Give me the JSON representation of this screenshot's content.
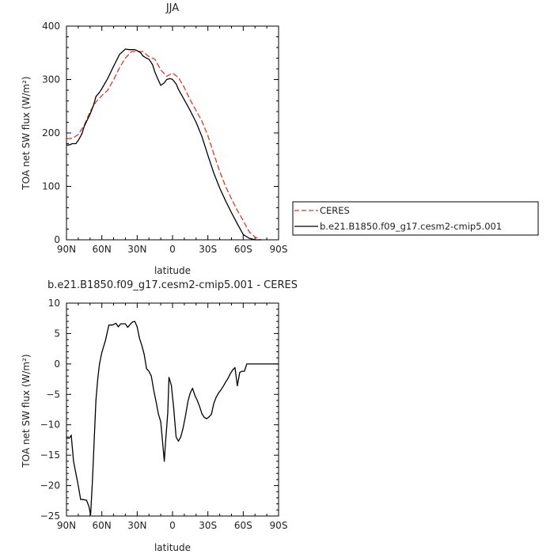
{
  "chart_data": [
    {
      "type": "line",
      "title": "JJA",
      "xlabel": "latitude",
      "ylabel": "TOA net SW flux (W/m²)",
      "ylim": [
        0,
        400
      ],
      "yticks": [
        "0",
        "100",
        "200",
        "300",
        "400"
      ],
      "xlim": [
        90,
        -90
      ],
      "xtick_values": [
        90,
        60,
        30,
        0,
        -30,
        -60,
        -90
      ],
      "xticks": [
        "90N",
        "60N",
        "30N",
        "0",
        "30S",
        "60S",
        "90S"
      ],
      "legend_position": "right",
      "series": [
        {
          "name": "CERES",
          "color": "#e8332b",
          "dash": "dashed",
          "x": [
            90,
            85,
            80,
            75,
            70,
            65,
            60,
            55,
            50,
            45,
            40,
            35,
            30,
            25,
            20,
            15,
            10,
            5,
            0,
            -5,
            -10,
            -15,
            -20,
            -25,
            -30,
            -35,
            -40,
            -45,
            -50,
            -55,
            -60,
            -65,
            -70,
            -75
          ],
          "y": [
            189,
            190,
            197,
            214,
            240,
            258,
            270,
            280,
            300,
            322,
            340,
            352,
            353,
            352,
            343,
            338,
            318,
            306,
            312,
            304,
            285,
            262,
            242,
            222,
            195,
            161,
            128,
            100,
            77,
            55,
            36,
            15,
            5,
            0
          ]
        },
        {
          "name": "b.e21.B1850.f09_g17.cesm2-cmip5.001",
          "color": "#000000",
          "dash": "solid",
          "x": [
            90,
            87,
            85,
            82,
            80,
            77,
            75,
            72,
            70,
            67,
            65,
            62,
            60,
            55,
            50,
            45,
            40,
            37,
            35,
            32,
            30,
            27,
            25,
            22,
            20,
            17,
            15,
            12,
            10,
            7,
            5,
            2,
            0,
            -3,
            -5,
            -10,
            -15,
            -20,
            -25,
            -30,
            -35,
            -40,
            -45,
            -50,
            -55,
            -60,
            -65,
            -70,
            -75
          ],
          "y": [
            177,
            178,
            180,
            180,
            186,
            198,
            212,
            226,
            235,
            252,
            268,
            276,
            283,
            302,
            325,
            347,
            357,
            356,
            356,
            356,
            354,
            350,
            344,
            340,
            338,
            328,
            314,
            299,
            289,
            294,
            300,
            302,
            300,
            292,
            282,
            262,
            242,
            220,
            193,
            158,
            125,
            97,
            73,
            51,
            30,
            10,
            3,
            0,
            0
          ]
        }
      ]
    },
    {
      "type": "line",
      "title": "b.e21.B1850.f09_g17.cesm2-cmip5.001  -  CERES",
      "xlabel": "latitude",
      "ylabel": "TOA net SW flux (W/m²)",
      "ylim": [
        -25,
        10
      ],
      "yticks": [
        "−25",
        "−20",
        "−15",
        "−10",
        "−5",
        "0",
        "5",
        "10"
      ],
      "xlim": [
        90,
        -90
      ],
      "xtick_values": [
        90,
        60,
        30,
        0,
        -30,
        -60,
        -90
      ],
      "xticks": [
        "90N",
        "60N",
        "30N",
        "0",
        "30S",
        "60S",
        "90S"
      ],
      "series": [
        {
          "color": "#000000",
          "x": [
            90,
            87.5,
            86,
            84,
            82,
            80,
            78,
            76,
            73,
            71,
            69.5,
            68,
            66.5,
            65,
            63.5,
            62,
            60,
            57,
            54,
            51,
            48,
            46,
            44,
            42,
            40,
            38,
            36,
            34,
            32,
            30,
            28,
            26,
            24,
            22,
            20,
            18,
            16,
            14,
            12,
            10,
            8,
            7,
            6,
            4,
            3,
            1,
            -1,
            -3,
            -5,
            -7,
            -9,
            -11,
            -13,
            -15,
            -17,
            -19,
            -21,
            -23,
            -25,
            -27,
            -29,
            -31,
            -33,
            -35,
            -37,
            -39,
            -41,
            -43,
            -45,
            -47,
            -49,
            -51,
            -53,
            -55,
            -57,
            -59,
            -61,
            -62,
            -63,
            -64,
            -65,
            -66,
            -67,
            -68,
            -69,
            -70,
            -71,
            -72,
            -75,
            -80,
            -85,
            -90
          ],
          "y": [
            -12.2,
            -12.2,
            -11.7,
            -16.0,
            -18.0,
            -20.0,
            -22.3,
            -22.3,
            -22.4,
            -23.4,
            -24.8,
            -19.2,
            -12.6,
            -6.0,
            -2.5,
            0,
            1.9,
            3.8,
            6.4,
            6.4,
            6.7,
            6.1,
            6.6,
            6.6,
            6.6,
            6.0,
            6.5,
            6.9,
            7.0,
            6.1,
            4.2,
            3.0,
            1.5,
            -0.8,
            -1.2,
            -2.0,
            -4.3,
            -6.2,
            -8.2,
            -9.5,
            -13.8,
            -16.0,
            -13.0,
            -8.0,
            -2.2,
            -3.5,
            -7.3,
            -12.0,
            -12.7,
            -12.0,
            -10.5,
            -8.5,
            -6.2,
            -4.8,
            -4.0,
            -5.2,
            -6.0,
            -7.0,
            -8.2,
            -8.8,
            -9.0,
            -8.7,
            -8.3,
            -6.5,
            -5.5,
            -4.8,
            -4.3,
            -3.7,
            -3.0,
            -2.4,
            -1.6,
            -1.0,
            -0.6,
            -3.6,
            -1.4,
            -1.2,
            -1.2,
            -0.6,
            0,
            0,
            0,
            0,
            0,
            0,
            0,
            0,
            0,
            0,
            0,
            0,
            0,
            0
          ]
        }
      ]
    }
  ]
}
